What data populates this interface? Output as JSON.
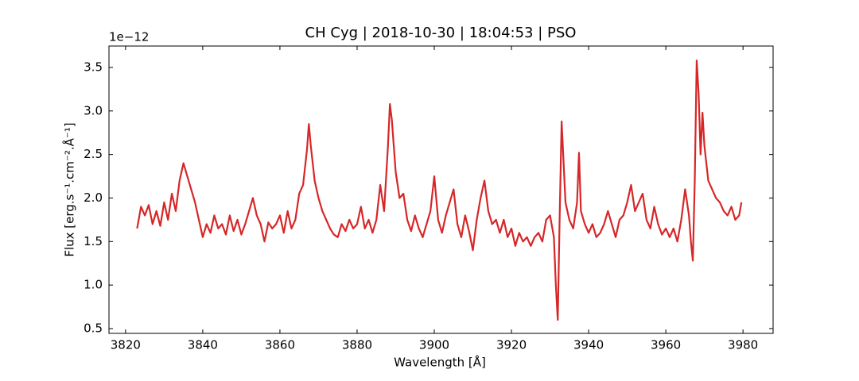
{
  "chart_data": {
    "type": "line",
    "title": "CH Cyg | 2018-10-30 | 18:04:53 | PSO",
    "x_label": "Wavelength [Å]",
    "y_label": "Flux [erg.s⁻¹.cm⁻².Å⁻¹]",
    "y_offset_label": "1e−12",
    "color": "#d62728",
    "xlim": [
      3815.7,
      3987.8
    ],
    "ylim": [
      0.445,
      3.746
    ],
    "xticks": [
      3820,
      3840,
      3860,
      3880,
      3900,
      3920,
      3940,
      3960,
      3980
    ],
    "yticks": [
      {
        "value": 0.5,
        "label": "0.5"
      },
      {
        "value": 1,
        "label": "1.0"
      },
      {
        "value": 1.5,
        "label": "1.5"
      },
      {
        "value": 2,
        "label": "2.0"
      },
      {
        "value": 2.5,
        "label": "2.5"
      },
      {
        "value": 3,
        "label": "3.0"
      },
      {
        "value": 3.5,
        "label": "3.5"
      }
    ],
    "x": [
      3823,
      3824,
      3825,
      3826,
      3827,
      3828,
      3829,
      3830,
      3831,
      3832,
      3833,
      3834,
      3835,
      3836,
      3837,
      3838,
      3839,
      3840,
      3841,
      3842,
      3843,
      3844,
      3845,
      3846,
      3847,
      3848,
      3849,
      3850,
      3851,
      3852,
      3853,
      3854,
      3855,
      3856,
      3857,
      3858,
      3859,
      3860,
      3861,
      3862,
      3863,
      3864,
      3865,
      3866,
      3867,
      3867.5,
      3868,
      3869,
      3870,
      3871,
      3872,
      3873,
      3874,
      3875,
      3876,
      3877,
      3878,
      3879,
      3880,
      3881,
      3882,
      3883,
      3884,
      3885,
      3886,
      3887,
      3888,
      3888.5,
      3889,
      3890,
      3891,
      3892,
      3893,
      3894,
      3895,
      3896,
      3897,
      3898,
      3899,
      3900,
      3901,
      3902,
      3903,
      3904,
      3905,
      3906,
      3907,
      3908,
      3909,
      3910,
      3911,
      3912,
      3913,
      3914,
      3915,
      3916,
      3917,
      3918,
      3919,
      3920,
      3921,
      3922,
      3923,
      3924,
      3925,
      3926,
      3927,
      3928,
      3929,
      3930,
      3931,
      3931.5,
      3932,
      3932.5,
      3933,
      3934,
      3935,
      3936,
      3937,
      3937.5,
      3938,
      3939,
      3940,
      3941,
      3942,
      3943,
      3944,
      3945,
      3946,
      3947,
      3948,
      3949,
      3950,
      3951,
      3952,
      3953,
      3954,
      3955,
      3956,
      3957,
      3958,
      3959,
      3960,
      3961,
      3962,
      3963,
      3964,
      3965,
      3966,
      3966.5,
      3967,
      3967.5,
      3968,
      3968.5,
      3969,
      3969.5,
      3970,
      3971,
      3972,
      3973,
      3974,
      3975,
      3976,
      3977,
      3978,
      3979,
      3979.6
    ],
    "values": [
      1.65,
      1.9,
      1.8,
      1.92,
      1.7,
      1.85,
      1.68,
      1.95,
      1.75,
      2.05,
      1.85,
      2.2,
      2.4,
      2.25,
      2.1,
      1.95,
      1.75,
      1.55,
      1.7,
      1.6,
      1.8,
      1.65,
      1.7,
      1.58,
      1.8,
      1.62,
      1.75,
      1.58,
      1.7,
      1.85,
      2.0,
      1.8,
      1.7,
      1.5,
      1.72,
      1.65,
      1.7,
      1.8,
      1.6,
      1.85,
      1.65,
      1.75,
      2.05,
      2.15,
      2.55,
      2.85,
      2.6,
      2.2,
      2.0,
      1.85,
      1.75,
      1.65,
      1.58,
      1.55,
      1.7,
      1.62,
      1.75,
      1.65,
      1.7,
      1.9,
      1.65,
      1.75,
      1.6,
      1.75,
      2.15,
      1.85,
      2.6,
      3.08,
      2.9,
      2.3,
      2.0,
      2.05,
      1.75,
      1.62,
      1.8,
      1.65,
      1.55,
      1.7,
      1.85,
      2.25,
      1.75,
      1.6,
      1.8,
      1.95,
      2.1,
      1.7,
      1.55,
      1.8,
      1.62,
      1.4,
      1.75,
      2.0,
      2.2,
      1.85,
      1.7,
      1.75,
      1.6,
      1.75,
      1.55,
      1.65,
      1.45,
      1.6,
      1.5,
      1.55,
      1.45,
      1.55,
      1.6,
      1.5,
      1.75,
      1.8,
      1.55,
      1.0,
      0.6,
      1.8,
      2.88,
      1.95,
      1.75,
      1.65,
      1.95,
      2.52,
      1.85,
      1.7,
      1.6,
      1.7,
      1.55,
      1.6,
      1.7,
      1.85,
      1.7,
      1.55,
      1.75,
      1.8,
      1.95,
      2.15,
      1.85,
      1.95,
      2.05,
      1.75,
      1.65,
      1.9,
      1.7,
      1.58,
      1.65,
      1.55,
      1.65,
      1.5,
      1.75,
      2.1,
      1.8,
      1.5,
      1.28,
      2.2,
      3.58,
      3.2,
      2.5,
      2.98,
      2.6,
      2.2,
      2.1,
      2.0,
      1.95,
      1.85,
      1.8,
      1.9,
      1.75,
      1.8,
      1.95
    ]
  }
}
